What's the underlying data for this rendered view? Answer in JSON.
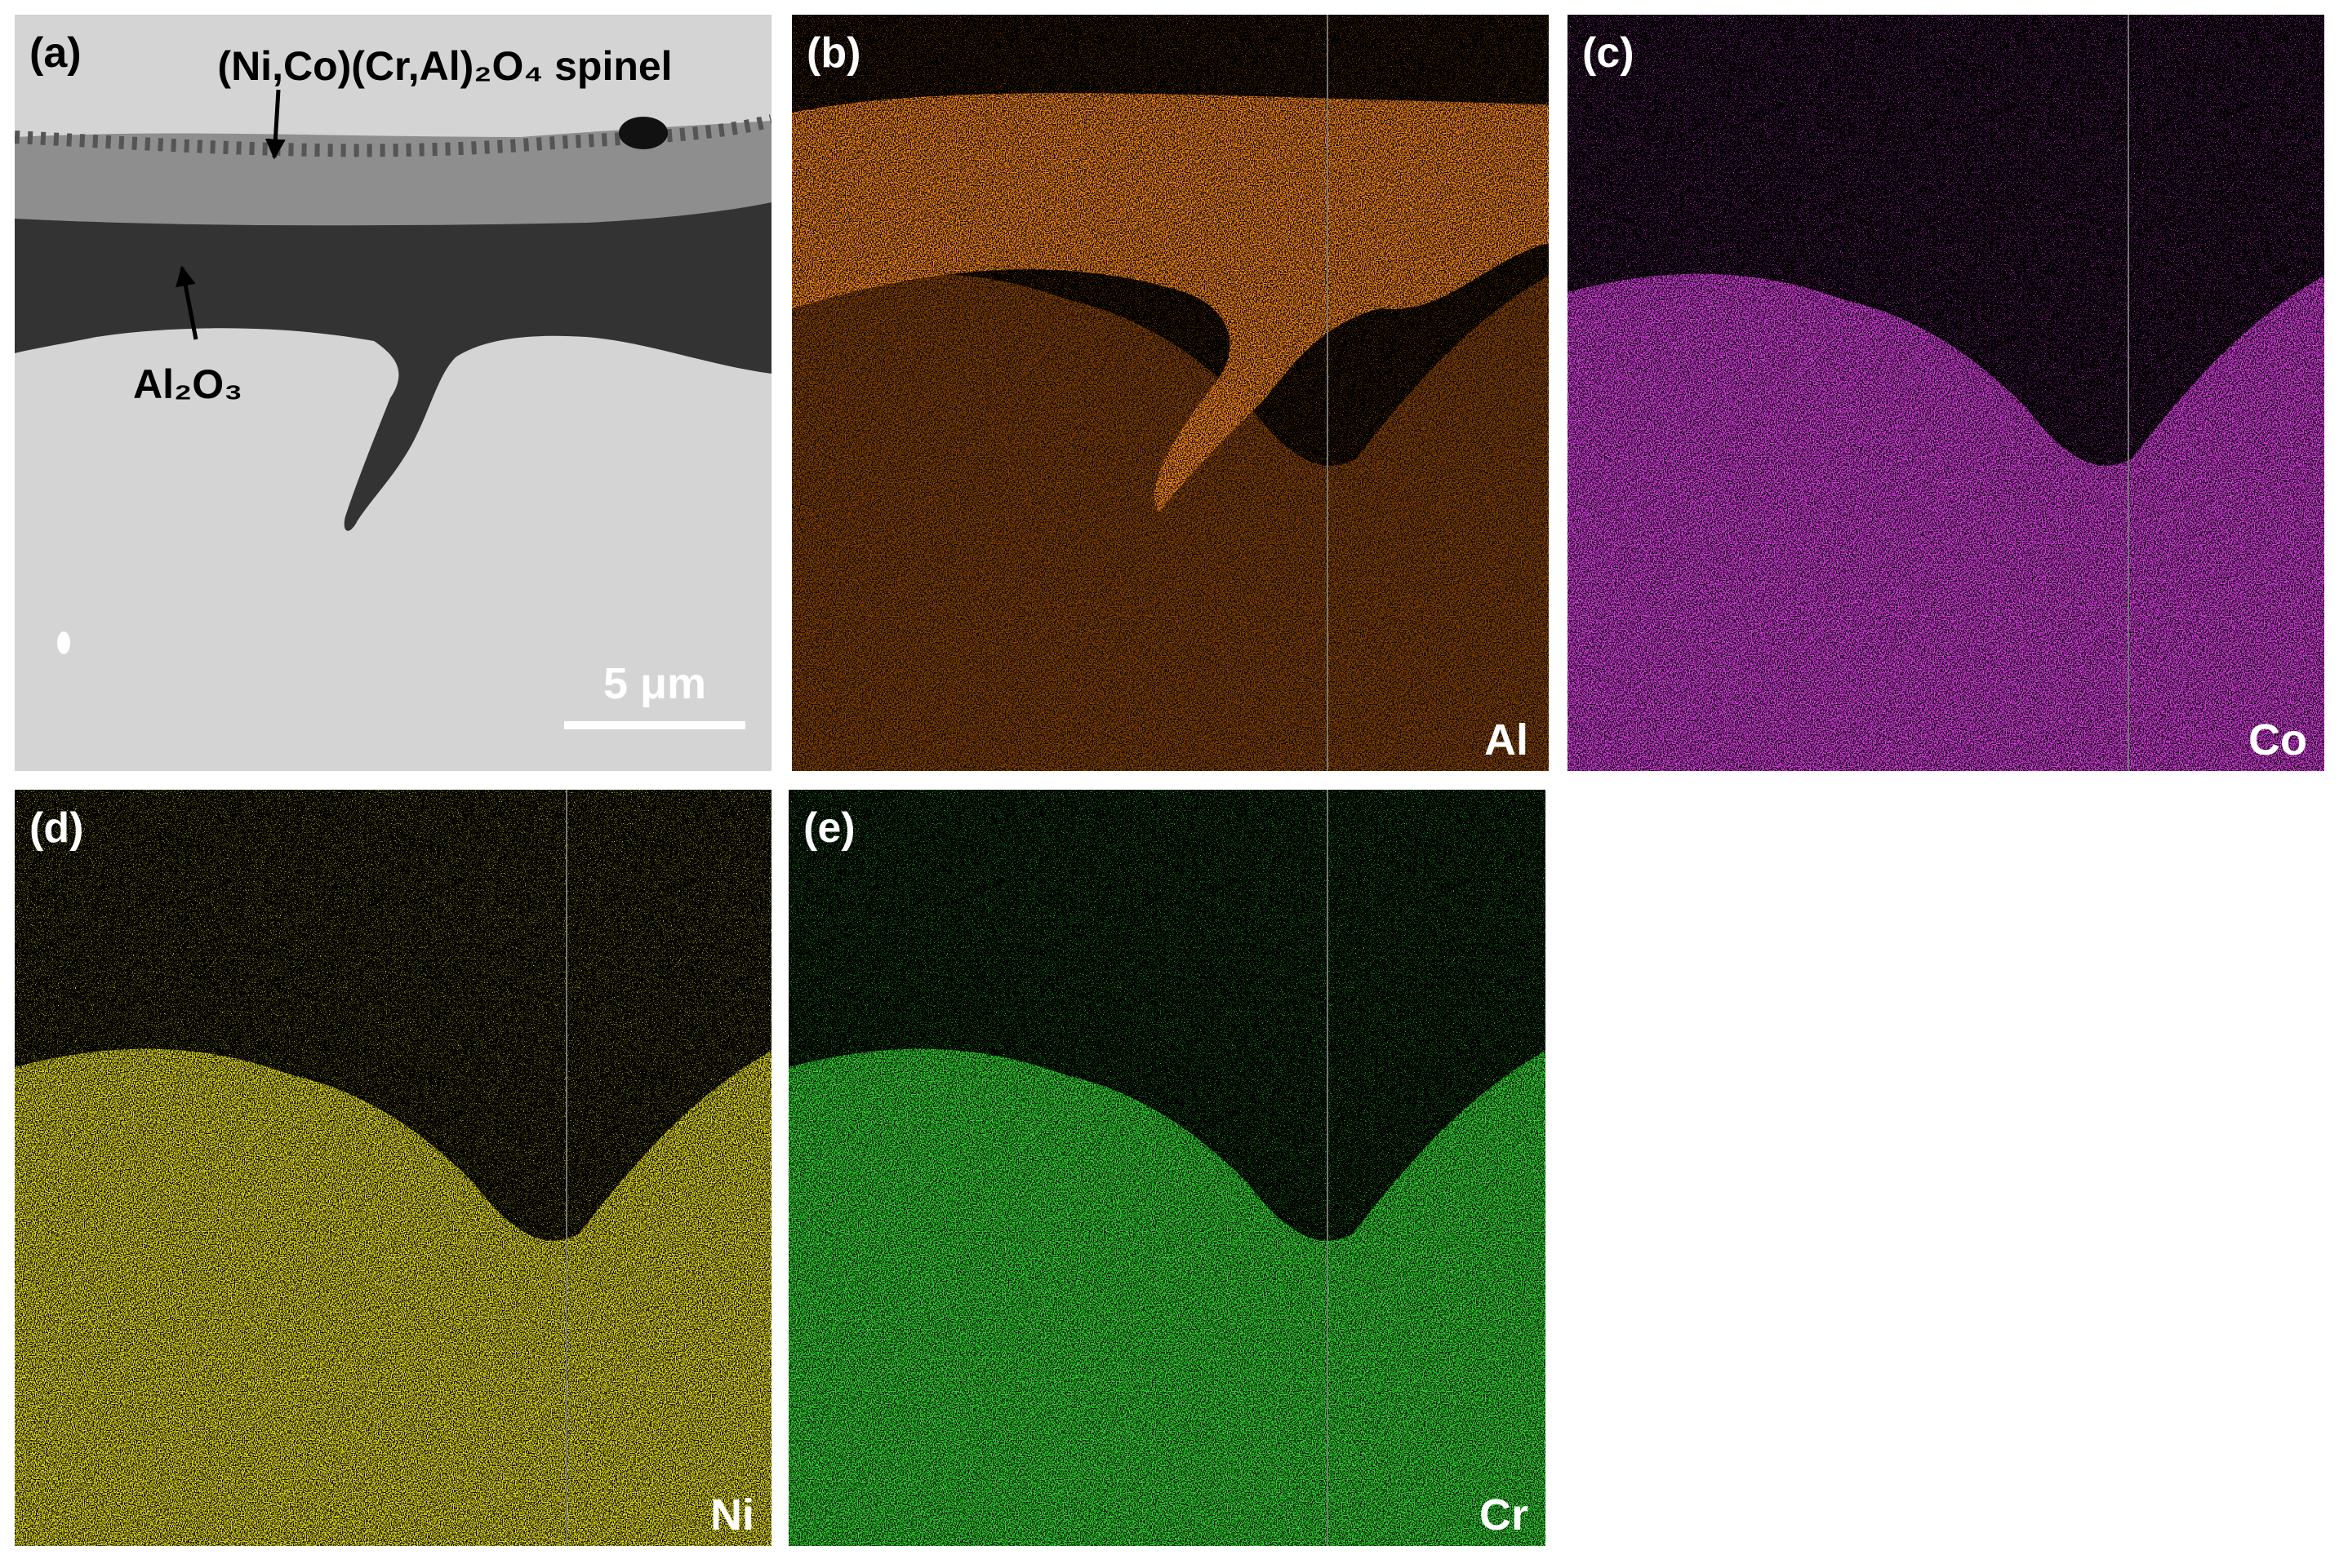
{
  "panels": [
    {
      "label": "(a)"
    },
    {
      "label": "(b)",
      "element": "Al"
    },
    {
      "label": "(c)",
      "element": "Co"
    },
    {
      "label": "(d)",
      "element": "Ni"
    },
    {
      "label": "(e)",
      "element": "Cr"
    }
  ],
  "annotations": {
    "spinel": "(Ni,Co)(Cr,Al)₂O₄ spinel",
    "alumina": "Al₂O₃"
  },
  "scale_bar": "5 μm"
}
